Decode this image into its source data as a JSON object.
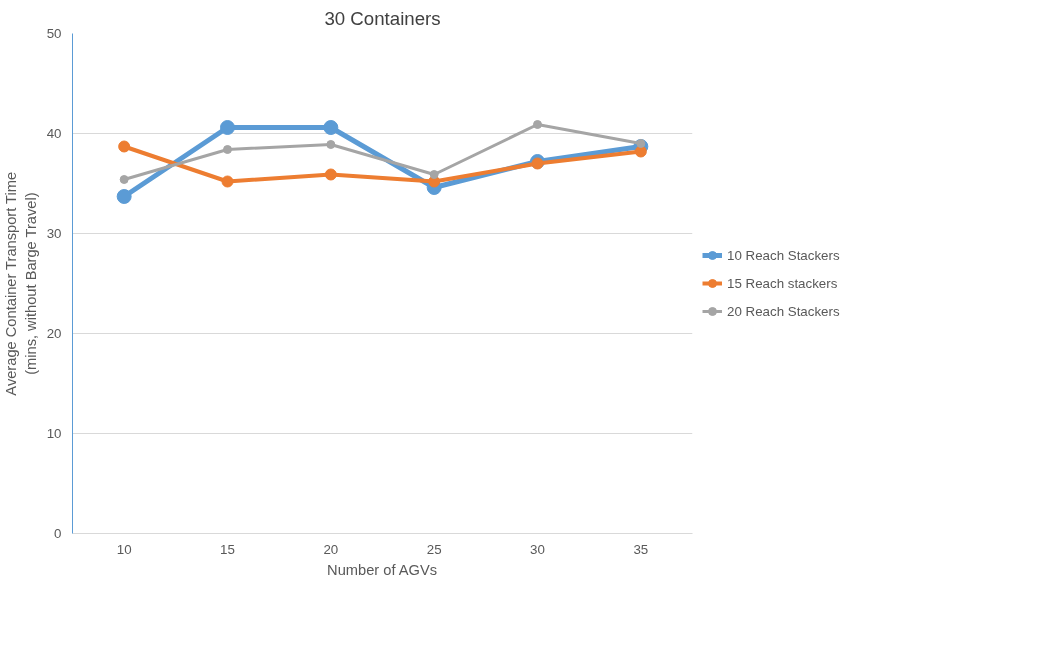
{
  "chart_data": {
    "type": "line",
    "title": "30 Containers",
    "xlabel": "Number of AGVs",
    "ylabel": "Average Container Transport Time\n(mins, without Barge Travel)",
    "categories": [
      "10",
      "15",
      "20",
      "25",
      "30",
      "35"
    ],
    "series": [
      {
        "name": "10 Reach Stackers",
        "color": "#5b9bd5",
        "values": [
          33.7,
          40.6,
          40.6,
          34.6,
          37.2,
          38.7
        ]
      },
      {
        "name": "15 Reach stackers",
        "color": "#ed7d31",
        "values": [
          38.7,
          35.2,
          35.9,
          35.2,
          37.0,
          38.2
        ]
      },
      {
        "name": "20 Reach Stackers",
        "color": "#a5a5a5",
        "values": [
          35.4,
          38.4,
          38.9,
          35.9,
          40.9,
          39.0
        ]
      }
    ],
    "ylim": [
      0,
      50
    ],
    "yticks": [
      0,
      10,
      20,
      30,
      40,
      50
    ],
    "grid": "y",
    "legend": "right",
    "marker": "circle",
    "line_style": "solid"
  }
}
